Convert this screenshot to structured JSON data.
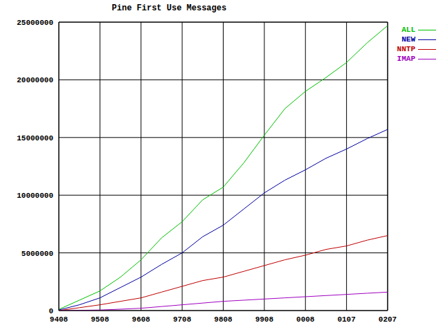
{
  "chart_data": {
    "type": "line",
    "title": "Pine First Use Messages",
    "categories": [
      "9408",
      null,
      "9508",
      null,
      "9608",
      null,
      "9708",
      null,
      "9808",
      null,
      "9908",
      null,
      "0008",
      null,
      "0107",
      null,
      "0207"
    ],
    "series": [
      {
        "name": "ALL",
        "color": "#00c000",
        "values": [
          100000,
          900000,
          1700000,
          2900000,
          4400000,
          6300000,
          7700000,
          9600000,
          10700000,
          12800000,
          15200000,
          17500000,
          19000000,
          20200000,
          21500000,
          23200000,
          24700000
        ]
      },
      {
        "name": "NEW",
        "color": "#0000a0",
        "values": [
          50000,
          500000,
          1100000,
          2000000,
          2900000,
          4000000,
          5000000,
          6400000,
          7400000,
          8800000,
          10200000,
          11300000,
          12200000,
          13200000,
          14000000,
          14900000,
          15700000
        ]
      },
      {
        "name": "NNTP",
        "color": "#c00000",
        "values": [
          0,
          250000,
          500000,
          800000,
          1100000,
          1600000,
          2100000,
          2600000,
          2900000,
          3400000,
          3900000,
          4400000,
          4800000,
          5300000,
          5600000,
          6100000,
          6500000
        ]
      },
      {
        "name": "IMAP",
        "color": "#a000c0",
        "values": [
          0,
          20000,
          50000,
          120000,
          200000,
          350000,
          500000,
          650000,
          800000,
          900000,
          1000000,
          1100000,
          1200000,
          1300000,
          1400000,
          1500000,
          1600000
        ]
      }
    ],
    "ylim": [
      0,
      25000000
    ],
    "yticks": [
      0,
      5000000,
      10000000,
      15000000,
      20000000,
      25000000
    ],
    "grid": true,
    "legend": "upper right"
  }
}
